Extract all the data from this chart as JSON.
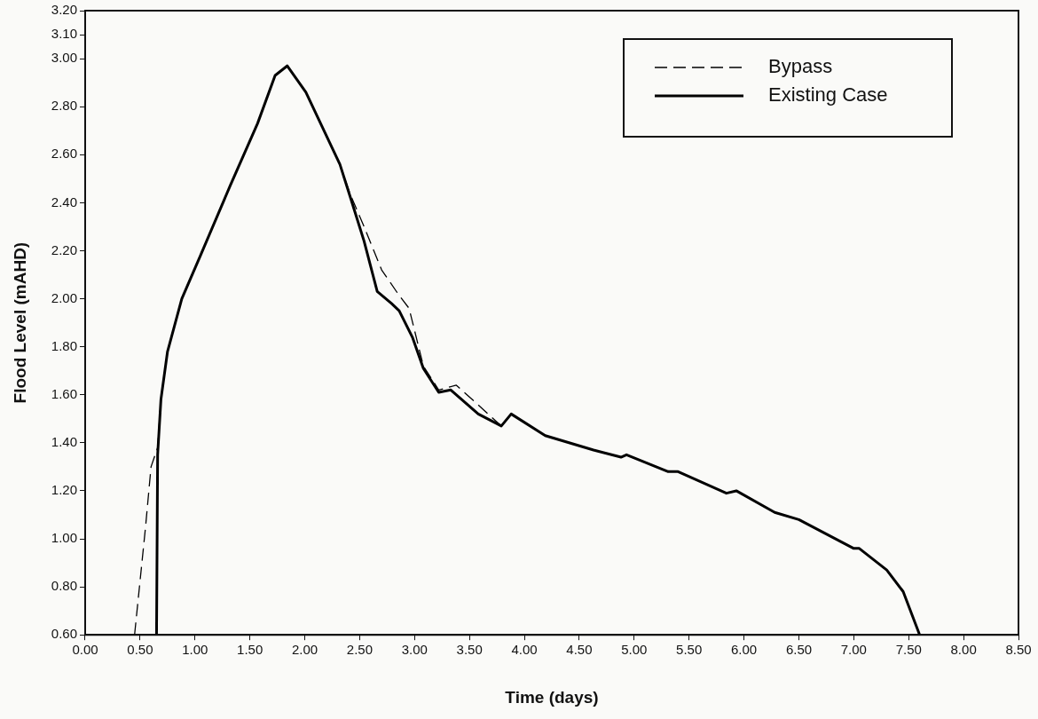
{
  "chart_data": {
    "type": "line",
    "xlabel": "Time (days)",
    "ylabel": "Flood Level (mAHD)",
    "xlim": [
      0,
      8.5
    ],
    "xticks": [
      {
        "value": 0,
        "label": "0.00"
      },
      {
        "value": 0.5,
        "label": "0.50"
      },
      {
        "value": 1,
        "label": "1.00"
      },
      {
        "value": 1.5,
        "label": "1.50"
      },
      {
        "value": 2,
        "label": "2.00"
      },
      {
        "value": 2.5,
        "label": "2.50"
      },
      {
        "value": 3,
        "label": "3.00"
      },
      {
        "value": 3.5,
        "label": "3.50"
      },
      {
        "value": 4,
        "label": "4.00"
      },
      {
        "value": 4.5,
        "label": "4.50"
      },
      {
        "value": 5,
        "label": "5.00"
      },
      {
        "value": 5.5,
        "label": "5.50"
      },
      {
        "value": 6,
        "label": "6.00"
      },
      {
        "value": 6.5,
        "label": "6.50"
      },
      {
        "value": 7,
        "label": "7.00"
      },
      {
        "value": 7.5,
        "label": "7.50"
      },
      {
        "value": 8,
        "label": "8.00"
      },
      {
        "value": 8.5,
        "label": "8.50"
      }
    ],
    "ylim": [
      0.6,
      3.2
    ],
    "yticks": [
      {
        "value": 0.6,
        "label": "0.60"
      },
      {
        "value": 0.8,
        "label": "0.80"
      },
      {
        "value": 1,
        "label": "1.00"
      },
      {
        "value": 1.2,
        "label": "1.20"
      },
      {
        "value": 1.4,
        "label": "1.40"
      },
      {
        "value": 1.6,
        "label": "1.60"
      },
      {
        "value": 1.8,
        "label": "1.80"
      },
      {
        "value": 2,
        "label": "2.00"
      },
      {
        "value": 2.2,
        "label": "2.20"
      },
      {
        "value": 2.4,
        "label": "2.40"
      },
      {
        "value": 2.6,
        "label": "2.60"
      },
      {
        "value": 2.8,
        "label": "2.80"
      },
      {
        "value": 3,
        "label": "3.00"
      },
      {
        "value": 3.1,
        "label": "3.10"
      },
      {
        "value": 3.2,
        "label": "3.20"
      }
    ],
    "grid": false,
    "legend": "top right",
    "marker": "none",
    "series": [
      {
        "name": "Bypass",
        "color": "#000000",
        "line_style": "dashed",
        "x": [
          0.45,
          0.55,
          0.6,
          0.66,
          0.69,
          0.75,
          0.88,
          1.05,
          1.32,
          1.57,
          1.73,
          1.84,
          2.01,
          2.32,
          2.41,
          2.54,
          2.7,
          2.85,
          2.95,
          3.08,
          3.22,
          3.38,
          3.55,
          3.79,
          3.88,
          4.19,
          4.63,
          4.88,
          4.93,
          5.31,
          5.4,
          5.84,
          5.93,
          6.28,
          6.5,
          7,
          7.05,
          7.3,
          7.45,
          7.6
        ],
        "values": [
          0.6,
          1.05,
          1.3,
          1.38,
          1.58,
          1.78,
          2.0,
          2.18,
          2.47,
          2.73,
          2.93,
          2.97,
          2.86,
          2.56,
          2.44,
          2.3,
          2.12,
          2.02,
          1.96,
          1.72,
          1.62,
          1.64,
          1.57,
          1.47,
          1.52,
          1.43,
          1.37,
          1.34,
          1.35,
          1.28,
          1.28,
          1.19,
          1.2,
          1.11,
          1.08,
          0.96,
          0.96,
          0.87,
          0.78,
          0.6
        ]
      },
      {
        "name": "Existing Case",
        "color": "#000000",
        "line_style": "solid",
        "x": [
          0.65,
          0.66,
          0.69,
          0.75,
          0.88,
          1.05,
          1.32,
          1.57,
          1.73,
          1.84,
          2.01,
          2.32,
          2.41,
          2.54,
          2.66,
          2.79,
          2.86,
          2.98,
          3.08,
          3.22,
          3.33,
          3.58,
          3.79,
          3.88,
          4.19,
          4.63,
          4.88,
          4.93,
          5.31,
          5.4,
          5.84,
          5.93,
          6.28,
          6.5,
          7,
          7.05,
          7.3,
          7.45,
          7.6
        ],
        "values": [
          0.6,
          1.35,
          1.58,
          1.78,
          2.0,
          2.18,
          2.47,
          2.73,
          2.93,
          2.97,
          2.86,
          2.56,
          2.43,
          2.24,
          2.03,
          1.98,
          1.95,
          1.84,
          1.71,
          1.61,
          1.62,
          1.52,
          1.47,
          1.52,
          1.43,
          1.37,
          1.34,
          1.35,
          1.28,
          1.28,
          1.19,
          1.2,
          1.11,
          1.08,
          0.96,
          0.96,
          0.87,
          0.78,
          0.6
        ]
      }
    ]
  }
}
